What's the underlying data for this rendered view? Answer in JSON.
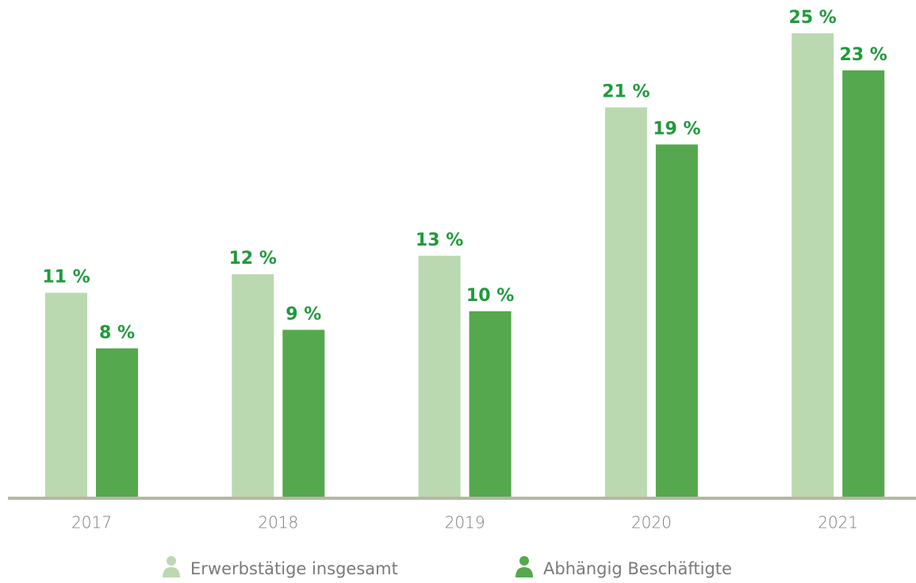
{
  "chart_data": {
    "type": "bar",
    "categories": [
      "2017",
      "2018",
      "2019",
      "2020",
      "2021"
    ],
    "series": [
      {
        "name": "Erwerbstätige insgesamt",
        "color": "#bbd9b1",
        "values": [
          11,
          12,
          13,
          21,
          25
        ],
        "value_labels": [
          "11 %",
          "12 %",
          "13 %",
          "21 %",
          "25 %"
        ]
      },
      {
        "name": "Abhängig Beschäftigte",
        "color": "#55a84e",
        "values": [
          8,
          9,
          10,
          19,
          23
        ],
        "value_labels": [
          "8 %",
          "9 %",
          "10 %",
          "19 %",
          "23 %"
        ]
      }
    ],
    "ylim": [
      0,
      25
    ]
  }
}
